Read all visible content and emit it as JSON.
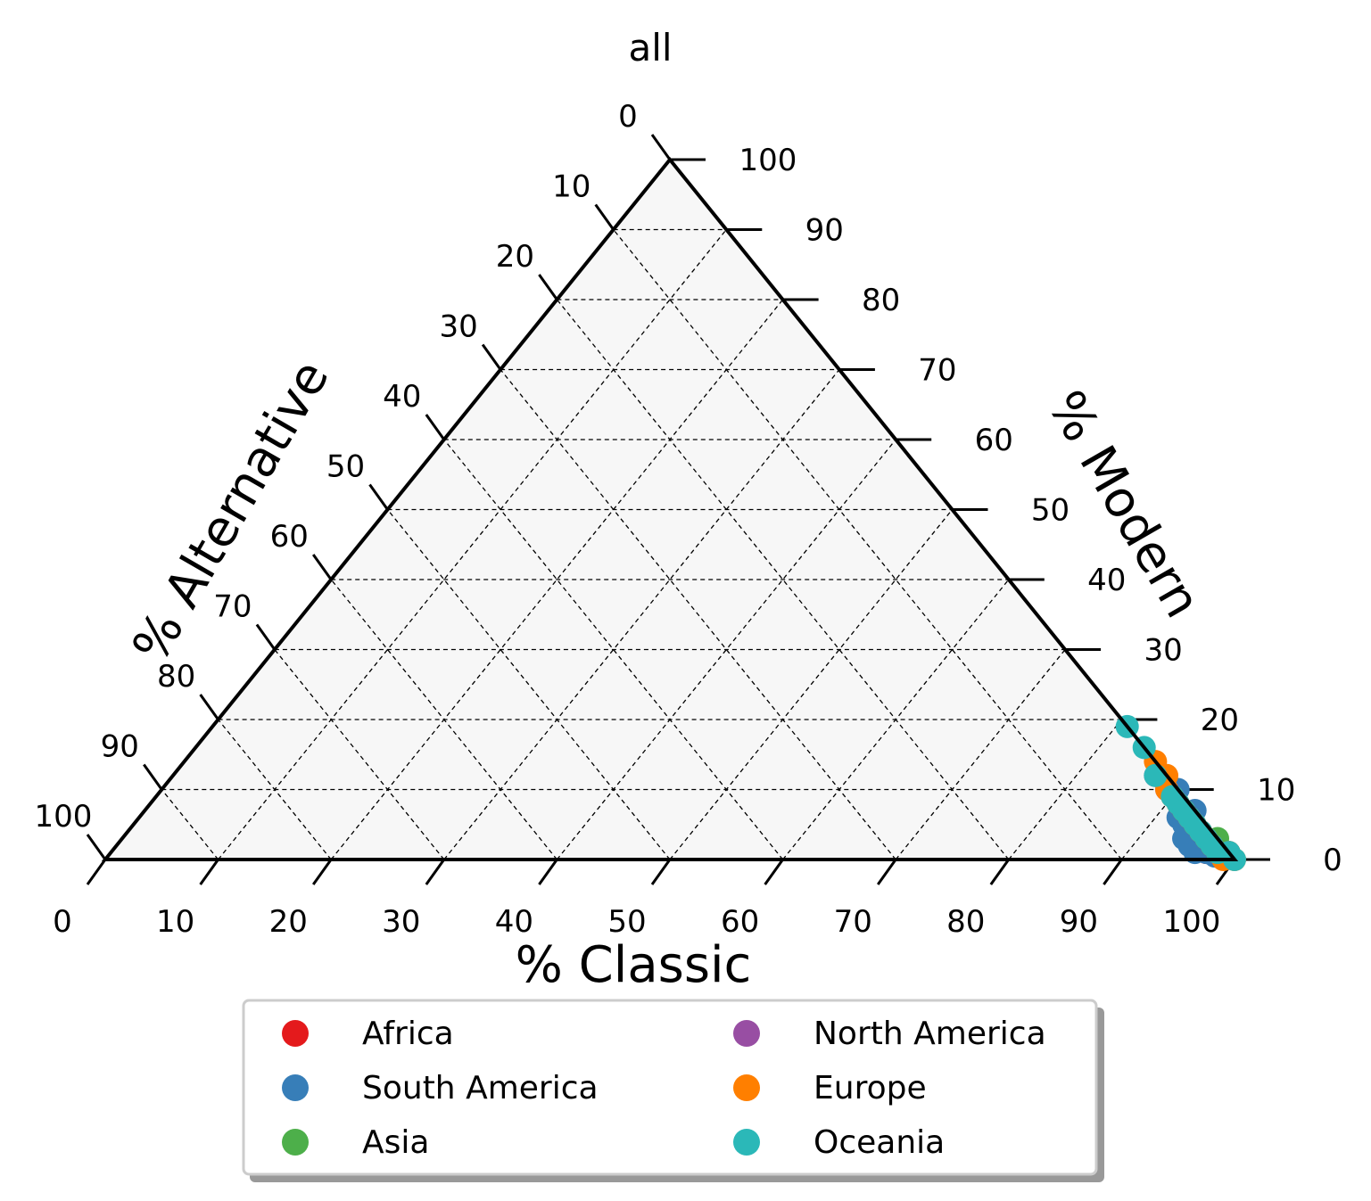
{
  "chart_data": {
    "type": "scatter",
    "subtype": "ternary",
    "title": "all",
    "axes": {
      "bottom": {
        "label": "% Classic",
        "ticks": [
          "0",
          "10",
          "20",
          "30",
          "40",
          "50",
          "60",
          "70",
          "80",
          "90",
          "100"
        ]
      },
      "right": {
        "label": "% Modern",
        "ticks": [
          "0",
          "10",
          "20",
          "30",
          "40",
          "50",
          "60",
          "70",
          "80",
          "90",
          "100"
        ]
      },
      "left": {
        "label": "% Alternative",
        "ticks": [
          "0",
          "10",
          "20",
          "30",
          "40",
          "50",
          "60",
          "70",
          "80",
          "90",
          "100"
        ]
      }
    },
    "range": [
      0,
      100
    ],
    "grid": true,
    "legend_position": "bottom",
    "series": [
      {
        "name": "Africa",
        "color": "#e41a1c",
        "points": [
          [
            97,
            2,
            1
          ],
          [
            98,
            1,
            1
          ],
          [
            96,
            2,
            2
          ],
          [
            97,
            1,
            2
          ],
          [
            98,
            1.5,
            0.5
          ]
        ]
      },
      {
        "name": "South America",
        "color": "#377eb8",
        "points": [
          [
            90,
            10,
            0
          ],
          [
            91,
            8,
            1
          ],
          [
            92,
            6,
            2
          ],
          [
            93,
            5,
            2
          ],
          [
            94,
            3,
            3
          ],
          [
            95,
            2,
            3
          ],
          [
            96,
            1,
            3
          ],
          [
            97,
            1,
            2
          ],
          [
            98,
            0.5,
            1.5
          ],
          [
            99,
            0.5,
            0.5
          ],
          [
            93,
            7,
            0
          ],
          [
            95,
            4,
            1
          ],
          [
            96,
            3,
            1
          ],
          [
            97,
            2,
            1
          ],
          [
            98,
            1,
            1
          ]
        ]
      },
      {
        "name": "Asia",
        "color": "#4daf4a",
        "points": [
          [
            92,
            7,
            1
          ],
          [
            94,
            5,
            1
          ],
          [
            95,
            4,
            1
          ],
          [
            96,
            3,
            1
          ],
          [
            97,
            2,
            1
          ],
          [
            98,
            1,
            1
          ],
          [
            99,
            1,
            0
          ],
          [
            97,
            3,
            0
          ]
        ]
      },
      {
        "name": "North America",
        "color": "#984ea3",
        "points": [
          [
            87,
            12,
            1
          ],
          [
            89,
            10,
            1
          ],
          [
            91,
            8,
            1
          ],
          [
            93,
            6,
            1
          ],
          [
            95,
            4,
            1
          ],
          [
            97,
            2,
            1
          ],
          [
            98,
            1,
            1
          ],
          [
            99,
            1,
            0
          ]
        ]
      },
      {
        "name": "Europe",
        "color": "#ff7f00",
        "points": [
          [
            86,
            14,
            0
          ],
          [
            88,
            12,
            0
          ],
          [
            89,
            10,
            1
          ],
          [
            90,
            9,
            1
          ],
          [
            91,
            8,
            1
          ],
          [
            92,
            7,
            1
          ],
          [
            93,
            6,
            1
          ],
          [
            94,
            5,
            1
          ],
          [
            95,
            4,
            1
          ],
          [
            96,
            3,
            1
          ],
          [
            97,
            2,
            1
          ],
          [
            98,
            1,
            1
          ],
          [
            99,
            1,
            0
          ],
          [
            100,
            0,
            0
          ],
          [
            99,
            0,
            1
          ]
        ]
      },
      {
        "name": "Oceania",
        "color": "#2bb8b8",
        "points": [
          [
            81,
            19,
            0
          ],
          [
            84,
            16,
            0
          ],
          [
            87,
            12,
            1
          ],
          [
            90,
            9,
            1
          ],
          [
            91,
            8,
            1
          ],
          [
            92,
            7,
            1
          ],
          [
            93,
            6,
            1
          ],
          [
            94,
            5,
            1
          ],
          [
            95,
            4,
            1
          ],
          [
            96,
            3,
            1
          ],
          [
            97,
            2,
            1
          ],
          [
            98,
            1,
            1
          ],
          [
            99,
            1,
            0
          ],
          [
            100,
            0,
            0
          ]
        ]
      }
    ]
  }
}
